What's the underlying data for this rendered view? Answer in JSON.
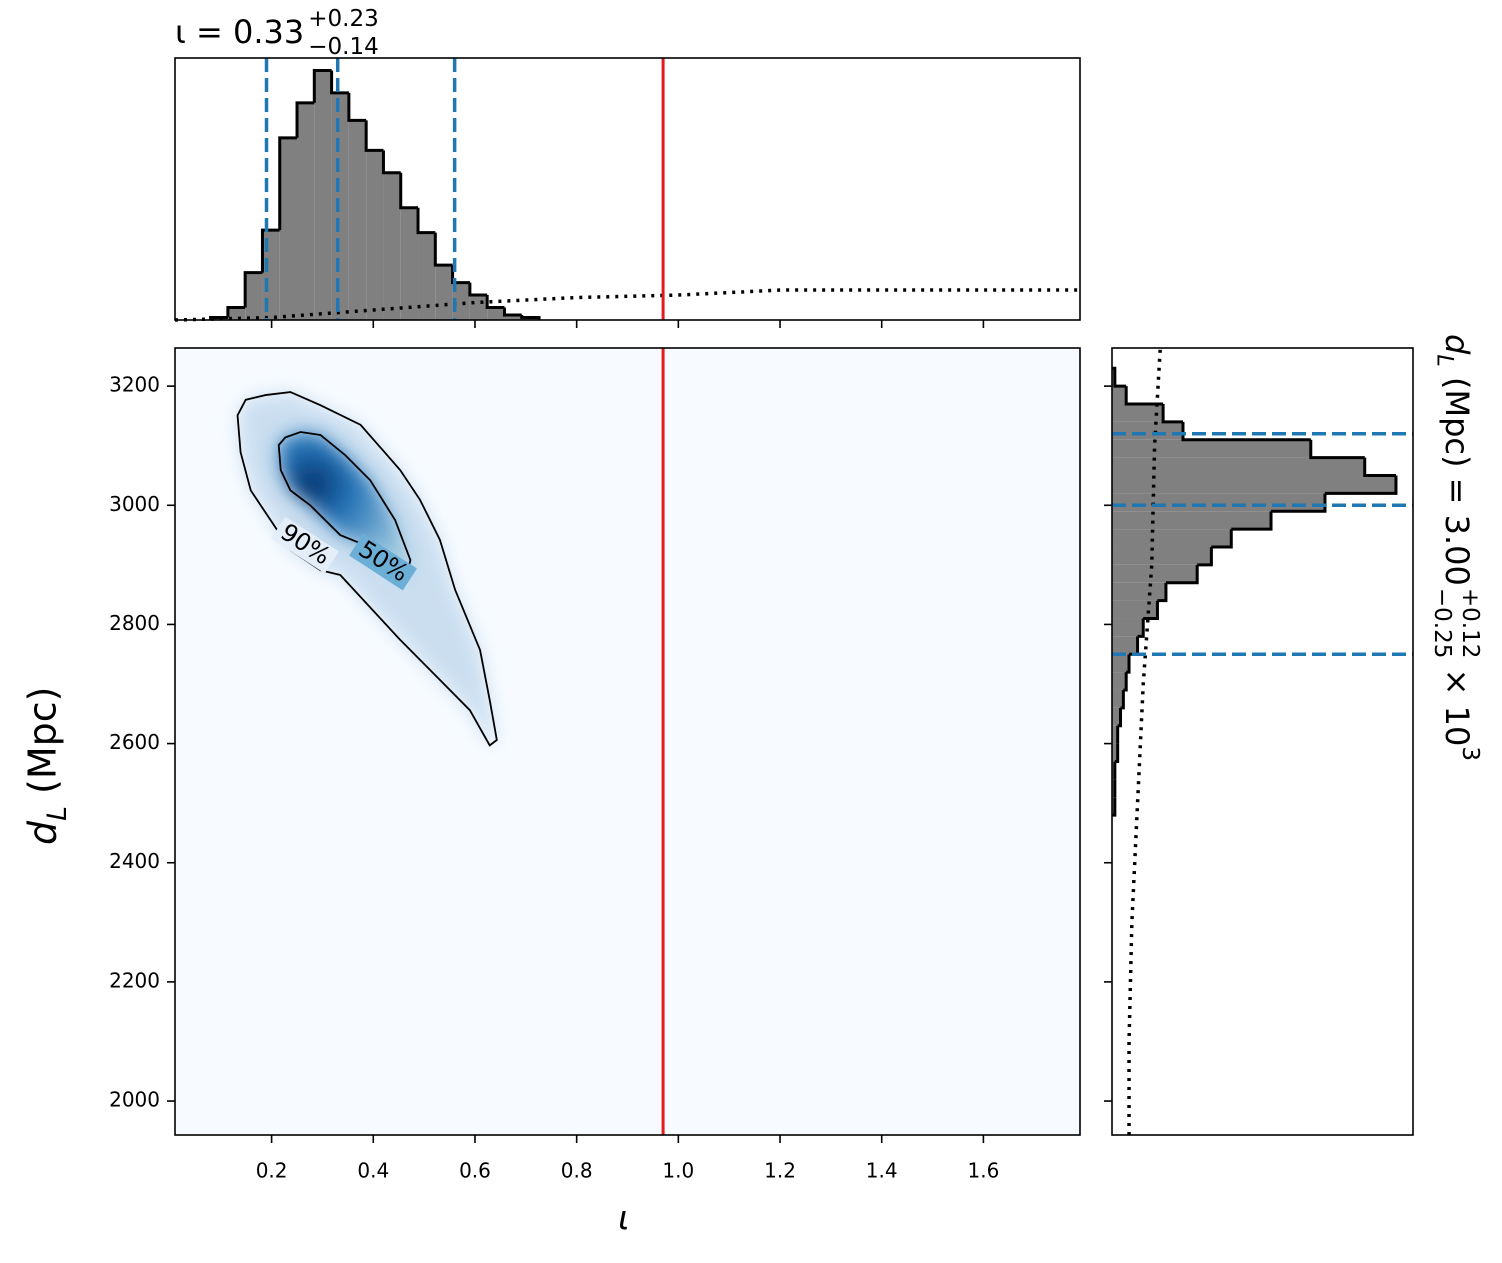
{
  "chart_data": [
    {
      "type": "histogram",
      "title": {
        "text": "ι = 0.33",
        "sup": "+0.23",
        "sub": "−0.14"
      },
      "bins": [
        0.08,
        0.114,
        0.148,
        0.182,
        0.216,
        0.25,
        0.284,
        0.318,
        0.352,
        0.386,
        0.42,
        0.454,
        0.488,
        0.522,
        0.556,
        0.59,
        0.624,
        0.658,
        0.692,
        0.726
      ],
      "values": [
        0.01,
        0.05,
        0.19,
        0.36,
        0.73,
        0.87,
        1.0,
        0.91,
        0.8,
        0.68,
        0.59,
        0.45,
        0.35,
        0.22,
        0.15,
        0.1,
        0.05,
        0.02,
        0.01
      ],
      "color": "#808080",
      "orientation": "vertical",
      "quantiles": [
        0.19,
        0.33,
        0.56
      ],
      "quantile_color": "#1f77b4",
      "prior": {
        "x": [
          0.01,
          0.2,
          0.4,
          0.6,
          0.8,
          1.0,
          1.2,
          1.4,
          1.6,
          1.79
        ],
        "values": [
          0.0,
          0.01,
          0.04,
          0.07,
          0.09,
          0.1,
          0.12,
          0.12,
          0.12,
          0.12
        ]
      },
      "ylim": [
        0,
        1.05
      ]
    },
    {
      "type": "contour",
      "xlabel": "ι",
      "ylabel": {
        "symbol": "d",
        "symbol_sub": "L",
        "text": " (Mpc)"
      },
      "truth": 0.97,
      "truth_color": "#e41a1c",
      "xlim": [
        0.01,
        1.79
      ],
      "ylim": [
        1943,
        3264
      ],
      "xticks": [
        0.2,
        0.4,
        0.6,
        0.8,
        {
          "value": 1,
          "label": "1.0"
        },
        1.2,
        1.4,
        1.6
      ],
      "yticks": [
        2000,
        2200,
        2400,
        2600,
        2800,
        3000,
        3200
      ],
      "contours": [
        {
          "level": "90%",
          "x": [
            0.139,
            0.133,
            0.149,
            0.188,
            0.237,
            0.296,
            0.375,
            0.453,
            0.492,
            0.531,
            0.561,
            0.61,
            0.629,
            0.643,
            0.629,
            0.59,
            0.531,
            0.453,
            0.335,
            0.296,
            0.237,
            0.198,
            0.159
          ],
          "y": [
            3089,
            3151,
            3177,
            3185,
            3190,
            3168,
            3135,
            3059,
            3009,
            2942,
            2858,
            2757,
            2673,
            2606,
            2597,
            2656,
            2707,
            2774,
            2883,
            2891,
            2925,
            2975,
            3025
          ]
        },
        {
          "level": "50%",
          "x": [
            0.218,
            0.214,
            0.227,
            0.257,
            0.296,
            0.345,
            0.394,
            0.443,
            0.473,
            0.463,
            0.424,
            0.384,
            0.335,
            0.276,
            0.237
          ],
          "y": [
            3059,
            3101,
            3114,
            3123,
            3118,
            3084,
            3042,
            2975,
            2908,
            2874,
            2908,
            2933,
            2950,
            3000,
            3025
          ]
        }
      ]
    },
    {
      "type": "histogram",
      "title": {
        "symbol": "d",
        "symbol_sub": "L",
        "text": " (Mpc) = 3.00",
        "sup": "+0.12",
        "sub": "−0.25",
        "tail": " × 10",
        "tail_sup": "3"
      },
      "bins": [
        2480,
        2510,
        2540,
        2570,
        2600,
        2630,
        2660,
        2690,
        2720,
        2750,
        2780,
        2810,
        2840,
        2870,
        2900,
        2930,
        2960,
        2990,
        3020,
        3050,
        3080,
        3110,
        3140,
        3170,
        3200,
        3230
      ],
      "values": [
        0.01,
        0.01,
        0.01,
        0.02,
        0.02,
        0.03,
        0.04,
        0.05,
        0.06,
        0.09,
        0.11,
        0.16,
        0.19,
        0.3,
        0.35,
        0.42,
        0.56,
        0.75,
        1.0,
        0.89,
        0.7,
        0.25,
        0.18,
        0.05,
        0.01
      ],
      "color": "#808080",
      "orientation": "horizontal",
      "quantiles": [
        2750,
        3000,
        3120
      ],
      "quantile_color": "#1f77b4",
      "prior": {
        "x": [
          1943,
          2100,
          2300,
          2500,
          2700,
          2900,
          3100,
          3264
        ],
        "values": [
          0.06,
          0.06,
          0.07,
          0.09,
          0.11,
          0.14,
          0.15,
          0.17
        ]
      },
      "xlim": [
        0,
        1.06
      ]
    }
  ]
}
